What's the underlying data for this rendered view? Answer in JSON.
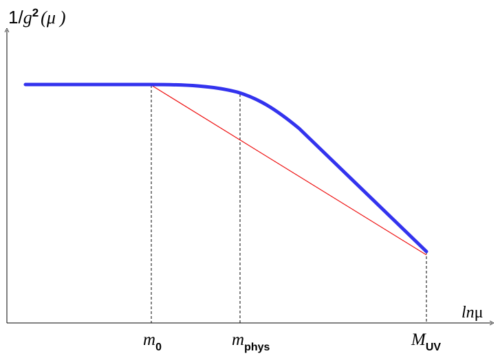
{
  "y_axis_label": {
    "numerator": "1/",
    "g": "g",
    "exponent": "2",
    "open_paren": "(",
    "mu": "μ",
    "close_paren": ")"
  },
  "x_axis_label": {
    "ln": "ln",
    "mu": "μ"
  },
  "markers": [
    {
      "base": "m",
      "sub": "0"
    },
    {
      "base": "m",
      "sub": "phys"
    },
    {
      "base": "M",
      "sub": "UV"
    }
  ],
  "colors": {
    "axis": "#000000",
    "running_coupling_curve": "#3333ee",
    "tree_level_line": "#ee1111",
    "guide_lines": "#000000"
  }
}
